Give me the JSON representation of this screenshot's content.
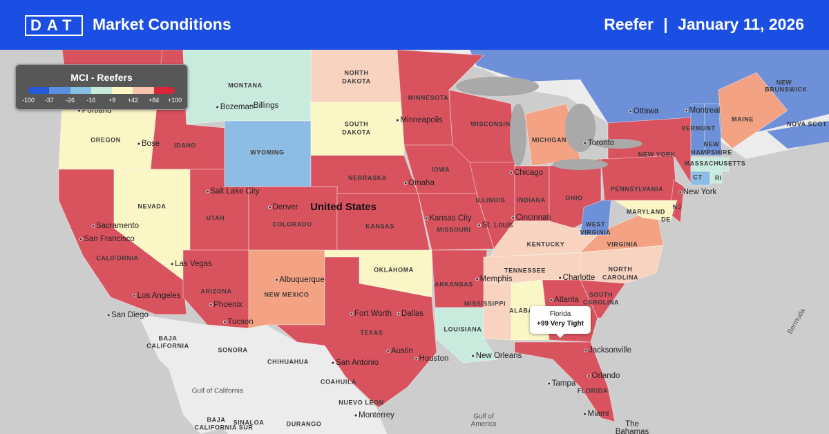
{
  "header": {
    "logo": "DAT",
    "title": "Market Conditions",
    "mode": "Reefer",
    "separator": "|",
    "date": "January 11, 2026"
  },
  "legend": {
    "title": "MCI - Reefers",
    "labels": [
      "-100",
      "-37",
      "-26",
      "-16",
      "+9",
      "+42",
      "+84",
      "+100"
    ]
  },
  "tooltip": {
    "state": "Florida",
    "value": "+99 Very Tight"
  },
  "map_labels": [
    "MONTANA",
    "NORTH",
    "DAKOTA",
    "MINNESOTA",
    "SOUTH",
    "DAKOTA",
    "OREGON",
    "IDAHO",
    "WYOMING",
    "WISCONSIN",
    "MICHIGAN",
    "IOWA",
    "NEBRASKA",
    "NEVADA",
    "UTAH",
    "COLORADO",
    "KANSAS",
    "ILLINOIS",
    "INDIANA",
    "OHIO",
    "PENNSYLVANIA",
    "NEW YORK",
    "MISSOURI",
    "KENTUCKY",
    "WEST",
    "VIRGINIA",
    "VIRGINIA",
    "MARYLAND",
    "DE",
    "NJ",
    "CALIFORNIA",
    "OKLAHOMA",
    "TENNESSEE",
    "NORTH",
    "CAROLINA",
    "ARIZONA",
    "NEW MEXICO",
    "ARKANSAS",
    "MISSISSIPPI",
    "ALABAMA",
    "SOUTH",
    "CAROLINA",
    "TEXAS",
    "LOUISIANA",
    "FLORIDA",
    "VERMONT",
    "NEW",
    "HAMPSHIRE",
    "MASSACHUSETTS",
    "CT",
    "RI",
    "MAINE",
    "NEW",
    "BRUNSWICK",
    "NOVA SCOT",
    "BAJA",
    "CALIFORNIA",
    "SONORA",
    "CHIHUAHUA",
    "COAHUILA",
    "NUEVO LEON",
    "SINALOA",
    "DURANGO",
    "BAJA",
    "CALIFORNIA SUR",
    "Portland",
    "Bose",
    "Bozeman",
    "Billings",
    "Minneapolis",
    "Omaha",
    "Chicago",
    "Toronto",
    "Ottawa",
    "Montreal",
    "Salt Lake City",
    "Denver",
    "Sacramento",
    "San Francisco",
    "Kansas City",
    "St. Louis",
    "Cincinnati",
    "New York",
    "Las Vegas",
    "Los Angeles",
    "San Diego",
    "Albuquerque",
    "Phoenix",
    "Tucson",
    "Memphis",
    "Charlotte",
    "Atlanta",
    "Fort Worth",
    "Dallas",
    "Austin",
    "San Antonio",
    "Houston",
    "New Orleans",
    "Jacksonville",
    "Orlando",
    "Tampa",
    "Miami",
    "Monterrey",
    "United States",
    "Bermuda",
    "Gulf of",
    "America",
    "Gulf of California",
    "The",
    "Bahamas"
  ]
}
